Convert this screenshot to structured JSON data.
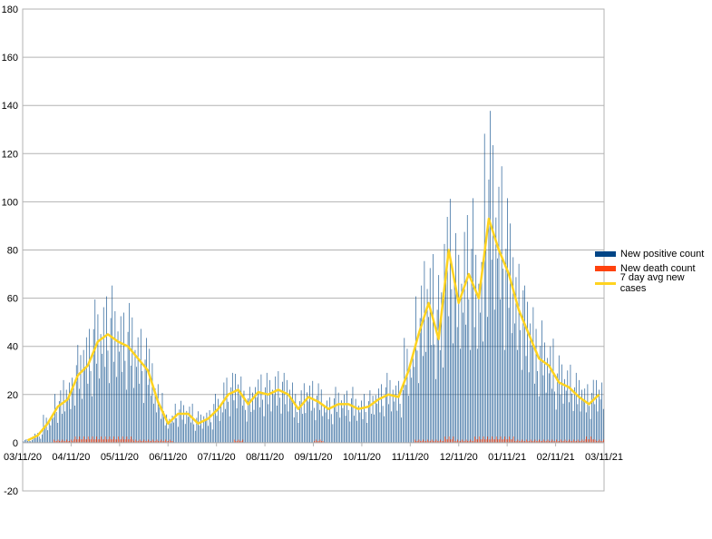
{
  "chart_data": {
    "type": "bar",
    "title": "",
    "xlabel": "",
    "ylabel": "",
    "ylim": [
      -20,
      180
    ],
    "yticks": [
      -20,
      0,
      20,
      40,
      60,
      80,
      100,
      120,
      140,
      160,
      180
    ],
    "xticks": [
      "03/11/20",
      "04/11/20",
      "05/11/20",
      "06/11/20",
      "07/11/20",
      "08/11/20",
      "09/11/20",
      "10/11/20",
      "11/11/20",
      "12/11/20",
      "01/11/21",
      "02/11/21",
      "03/11/21"
    ],
    "legend_position": "right",
    "grid": true,
    "colors": {
      "positive": "#004586",
      "deaths": "#ff420e",
      "avg": "#ffd320",
      "grid": "#b3b3b3"
    },
    "series": [
      {
        "name": "New positive count",
        "kind": "bar",
        "weekly_values": [
          1,
          3,
          8,
          15,
          20,
          28,
          35,
          41,
          45,
          42,
          40,
          35,
          30,
          18,
          9,
          12,
          12,
          9,
          10,
          14,
          20,
          22,
          16,
          21,
          20,
          22,
          20,
          15,
          19,
          17,
          14,
          16,
          16,
          14,
          15,
          18,
          20,
          19,
          30,
          45,
          58,
          48,
          75,
          60,
          70,
          60,
          95,
          85,
          70,
          55,
          45,
          35,
          32,
          25,
          24,
          20,
          18,
          20
        ]
      },
      {
        "name": "New death count",
        "kind": "bar",
        "weekly_values": [
          0,
          0,
          0,
          1,
          1,
          2,
          2,
          2,
          2,
          2,
          2,
          1,
          1,
          1,
          1,
          0,
          0,
          0,
          0,
          0,
          0,
          1,
          0,
          0,
          0,
          0,
          0,
          0,
          0,
          1,
          0,
          0,
          0,
          0,
          0,
          0,
          0,
          0,
          0,
          1,
          1,
          1,
          2,
          1,
          1,
          2,
          2,
          2,
          2,
          1,
          1,
          1,
          1,
          1,
          1,
          1,
          2,
          1
        ]
      },
      {
        "name": "7 day avg new cases",
        "kind": "line",
        "weekly_values": [
          1,
          3,
          8,
          15,
          18,
          28,
          32,
          42,
          45,
          42,
          40,
          35,
          30,
          17,
          8,
          12,
          12,
          8,
          10,
          14,
          20,
          22,
          16,
          21,
          20,
          22,
          20,
          14,
          19,
          17,
          14,
          16,
          16,
          14,
          15,
          18,
          20,
          19,
          30,
          45,
          58,
          43,
          80,
          58,
          70,
          60,
          93,
          80,
          70,
          55,
          45,
          35,
          32,
          25,
          23,
          19,
          16,
          20
        ]
      }
    ]
  }
}
